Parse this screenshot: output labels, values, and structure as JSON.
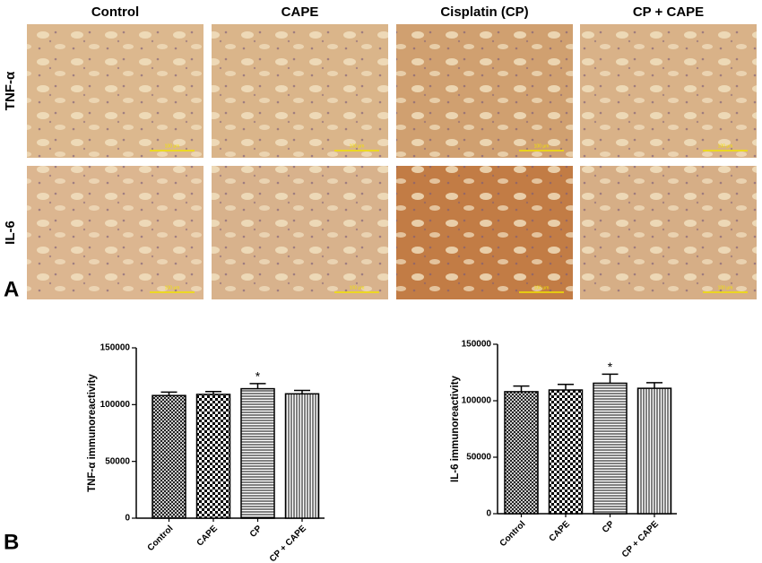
{
  "panel_a": {
    "label": "A",
    "columns": [
      "Control",
      "CAPE",
      "Cisplatin (CP)",
      "CP + CAPE"
    ],
    "rows": [
      "TNF-α",
      "IL-6"
    ],
    "scale_bar": "100 μm"
  },
  "panel_b": {
    "label": "B"
  },
  "chart_data": [
    {
      "type": "bar",
      "y_label": "TNF-α immunoreactivity",
      "categories": [
        "Control",
        "CAPE",
        "CP",
        "CP + CAPE"
      ],
      "values": [
        108000,
        109000,
        114000,
        109500
      ],
      "errors": [
        3000,
        2500,
        4500,
        3000
      ],
      "patterns": [
        "crosshatch",
        "checker",
        "horizontal",
        "vertical"
      ],
      "color": "#000000",
      "ylim": [
        0,
        150000
      ],
      "yticks": [
        0,
        50000,
        100000,
        150000
      ],
      "annotations": [
        {
          "label": "*",
          "category": "CP"
        }
      ]
    },
    {
      "type": "bar",
      "y_label": "IL-6 immunoreactivity",
      "categories": [
        "Control",
        "CAPE",
        "CP",
        "CP + CAPE"
      ],
      "values": [
        108000,
        109500,
        115500,
        111000
      ],
      "errors": [
        5000,
        5000,
        8000,
        5000
      ],
      "patterns": [
        "crosshatch",
        "checker",
        "horizontal",
        "vertical"
      ],
      "color": "#000000",
      "ylim": [
        0,
        150000
      ],
      "yticks": [
        0,
        50000,
        100000,
        150000
      ],
      "annotations": [
        {
          "label": "*",
          "category": "CP"
        }
      ]
    }
  ]
}
